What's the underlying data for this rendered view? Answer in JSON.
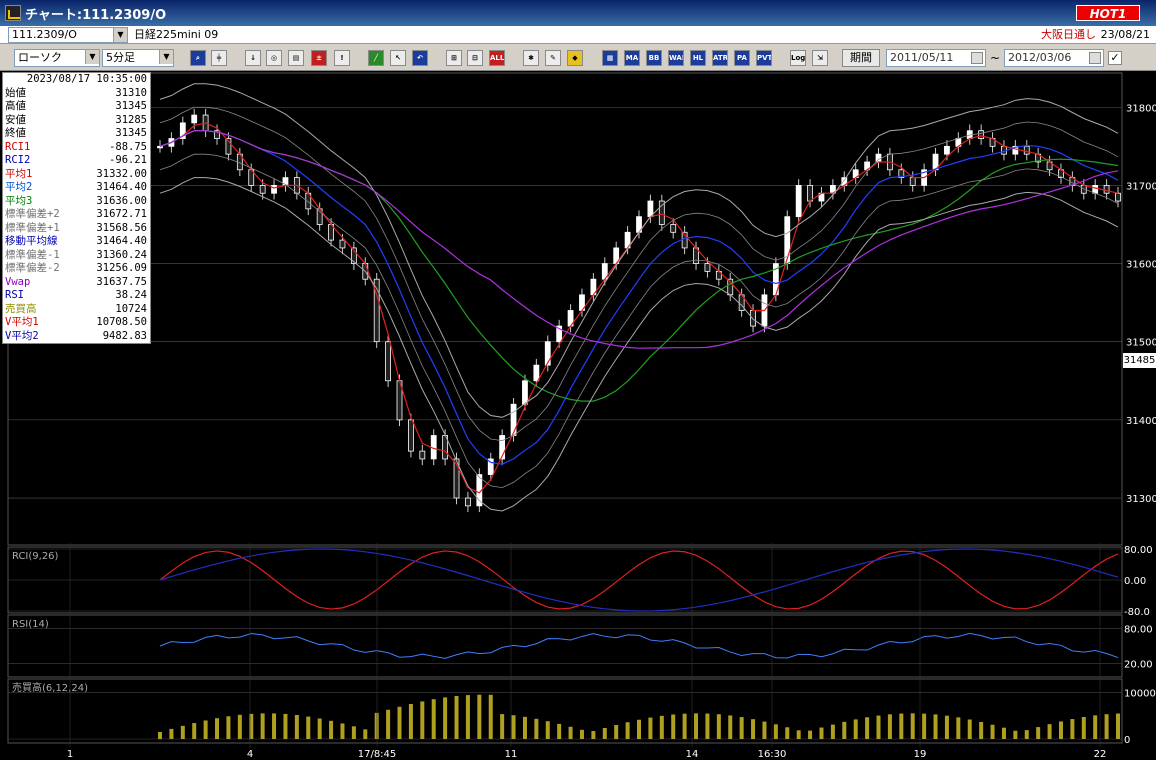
{
  "window": {
    "title": "チャート:111.2309/O",
    "hot_badge": "HOT1"
  },
  "symbol_bar": {
    "symbol": "111.2309/O",
    "security_name": "日経225mini 09",
    "market": "大阪日通し",
    "market_date": "23/08/21"
  },
  "toolbar": {
    "chart_type": "ローソク",
    "interval": "5分足",
    "period_button": "期間",
    "date_from": "2011/05/11",
    "date_separator": "~",
    "date_to": "2012/03/06",
    "buttons": [
      "MA",
      "BB",
      "WAE",
      "HL",
      "ATR",
      "PA",
      "PVT",
      "Log",
      "ALL"
    ]
  },
  "info_panel": {
    "datetime": "2023/08/17  10:35:00",
    "rows": [
      {
        "label": "始値",
        "value": "31310",
        "color": "#000000"
      },
      {
        "label": "高値",
        "value": "31345",
        "color": "#000000"
      },
      {
        "label": "安値",
        "value": "31285",
        "color": "#000000"
      },
      {
        "label": "終値",
        "value": "31345",
        "color": "#000000"
      },
      {
        "label": "RCI1",
        "value": "-88.75",
        "color": "#d00000"
      },
      {
        "label": "RCI2",
        "value": "-96.21",
        "color": "#0000b0"
      },
      {
        "label": "平均1",
        "value": "31332.00",
        "color": "#d00000"
      },
      {
        "label": "平均2",
        "value": "31464.40",
        "color": "#0050d0"
      },
      {
        "label": "平均3",
        "value": "31636.00",
        "color": "#008000"
      },
      {
        "label": "標準偏差+2",
        "value": "31672.71",
        "color": "#707070"
      },
      {
        "label": "標準偏差+1",
        "value": "31568.56",
        "color": "#707070"
      },
      {
        "label": "移動平均線",
        "value": "31464.40",
        "color": "#0000b0"
      },
      {
        "label": "標準偏差-1",
        "value": "31360.24",
        "color": "#707070"
      },
      {
        "label": "標準偏差-2",
        "value": "31256.09",
        "color": "#707070"
      },
      {
        "label": "Vwap",
        "value": "31637.75",
        "color": "#9000c0"
      },
      {
        "label": "RSI",
        "value": "38.24",
        "color": "#0000b0"
      },
      {
        "label": "売買高",
        "value": "10724",
        "color": "#909000"
      },
      {
        "label": "V平均1",
        "value": "10708.50",
        "color": "#d00000"
      },
      {
        "label": "V平均2",
        "value": "9482.83",
        "color": "#0000b0"
      }
    ]
  },
  "price_axis": {
    "ticks": [
      "31800",
      "31700",
      "31600",
      "31500",
      "31400",
      "31300"
    ],
    "current": "31485"
  },
  "rci_pane": {
    "label": "RCI(9,26)",
    "ticks": [
      "80.00",
      "0.00",
      "-80.0"
    ]
  },
  "rsi_pane": {
    "label": "RSI(14)",
    "ticks": [
      "80.00",
      "20.00"
    ]
  },
  "volume_pane": {
    "label": "売買高(6,12,24)",
    "ticks": [
      "10000",
      "0"
    ]
  },
  "time_axis": {
    "ticks": [
      "1",
      "4",
      "17/8:45",
      "11",
      "14",
      "16:30",
      "19",
      "22"
    ]
  },
  "chart_data": {
    "type": "line",
    "title": "",
    "ylim": [
      31245,
      31840
    ],
    "panes": [
      "price",
      "rci",
      "rsi",
      "volume"
    ],
    "candle_close": [
      31750,
      31760,
      31780,
      31790,
      31770,
      31760,
      31740,
      31720,
      31700,
      31690,
      31700,
      31710,
      31690,
      31670,
      31650,
      31630,
      31620,
      31600,
      31580,
      31500,
      31450,
      31400,
      31360,
      31350,
      31380,
      31350,
      31300,
      31290,
      31330,
      31350,
      31380,
      31420,
      31450,
      31470,
      31500,
      31520,
      31540,
      31560,
      31580,
      31600,
      31620,
      31640,
      31660,
      31680,
      31650,
      31640,
      31620,
      31600,
      31590,
      31580,
      31560,
      31540,
      31520,
      31560,
      31600,
      31660,
      31700,
      31680,
      31690,
      31700,
      31710,
      31720,
      31730,
      31740,
      31720,
      31710,
      31700,
      31720,
      31740,
      31750,
      31760,
      31770,
      31760,
      31750,
      31740,
      31750,
      31740,
      31730,
      31720,
      31710,
      31700,
      31690,
      31700,
      31690,
      31680
    ],
    "grid": true,
    "legend": "top-left"
  }
}
